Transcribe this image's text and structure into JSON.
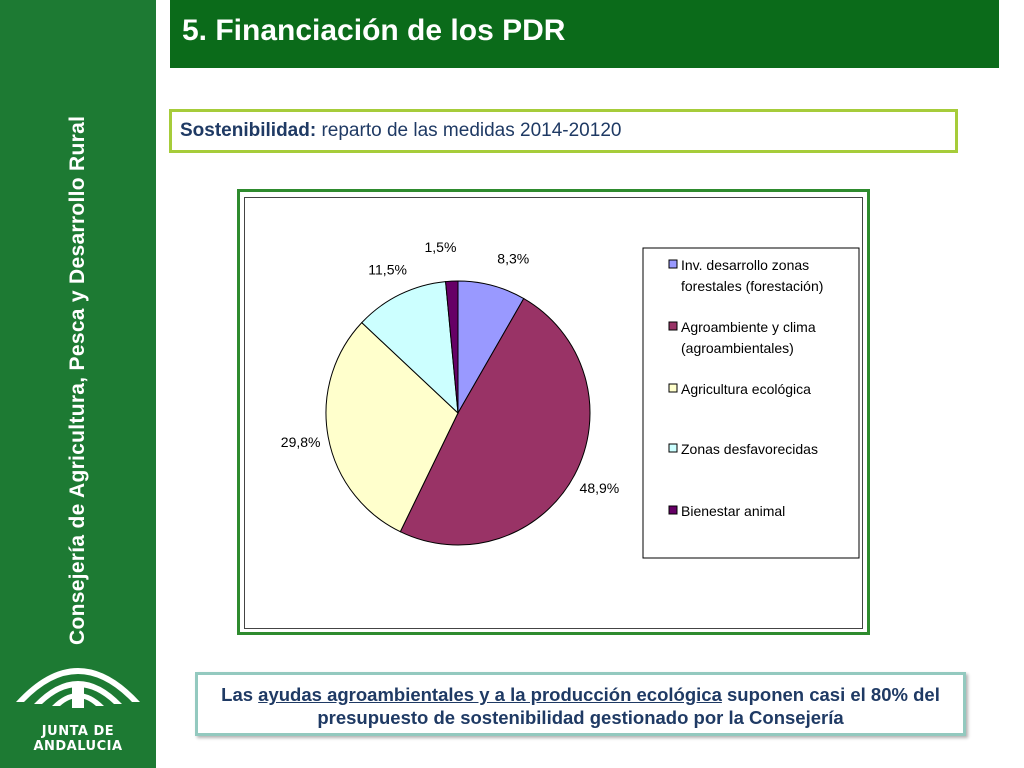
{
  "sidebar": {
    "vertical_text": "Consejería de Agricultura, Pesca y Desarrollo Rural",
    "logo_text": "JUNTA DE ANDALUCIA"
  },
  "header": {
    "title": "5. Financiación de los PDR"
  },
  "subtitle": {
    "bold": "Sostenibilidad:",
    "rest": " reparto de las medidas 2014-20120"
  },
  "chart_data": {
    "type": "pie",
    "slices": [
      {
        "label": "Inv. desarrollo zonas forestales (forestación)",
        "legend_lines": [
          "Inv. desarrollo zonas",
          "forestales (forestación)"
        ],
        "value": 8.3,
        "value_label": "8,3%",
        "color": "#9999ff"
      },
      {
        "label": "Agroambiente y clima (agroambientales)",
        "legend_lines": [
          "Agroambiente y clima",
          "(agroambientales)"
        ],
        "value": 48.9,
        "value_label": "48,9%",
        "color": "#993366"
      },
      {
        "label": "Agricultura ecológica",
        "legend_lines": [
          "Agricultura ecológica"
        ],
        "value": 29.8,
        "value_label": "29,8%",
        "color": "#ffffcc"
      },
      {
        "label": "Zonas desfavorecidas",
        "legend_lines": [
          "Zonas desfavorecidas"
        ],
        "value": 11.5,
        "value_label": "11,5%",
        "color": "#ccffff"
      },
      {
        "label": "Bienestar animal",
        "legend_lines": [
          "Bienestar animal"
        ],
        "value": 1.5,
        "value_label": "1,5%",
        "color": "#660066"
      }
    ],
    "legend_placement": "right"
  },
  "note": {
    "t1": "Las ",
    "t2": "ayudas agroambientales y a la producción ecológica",
    "t3": " suponen casi el 80% del presupuesto de sostenibilidad gestionado por la Consejería"
  }
}
